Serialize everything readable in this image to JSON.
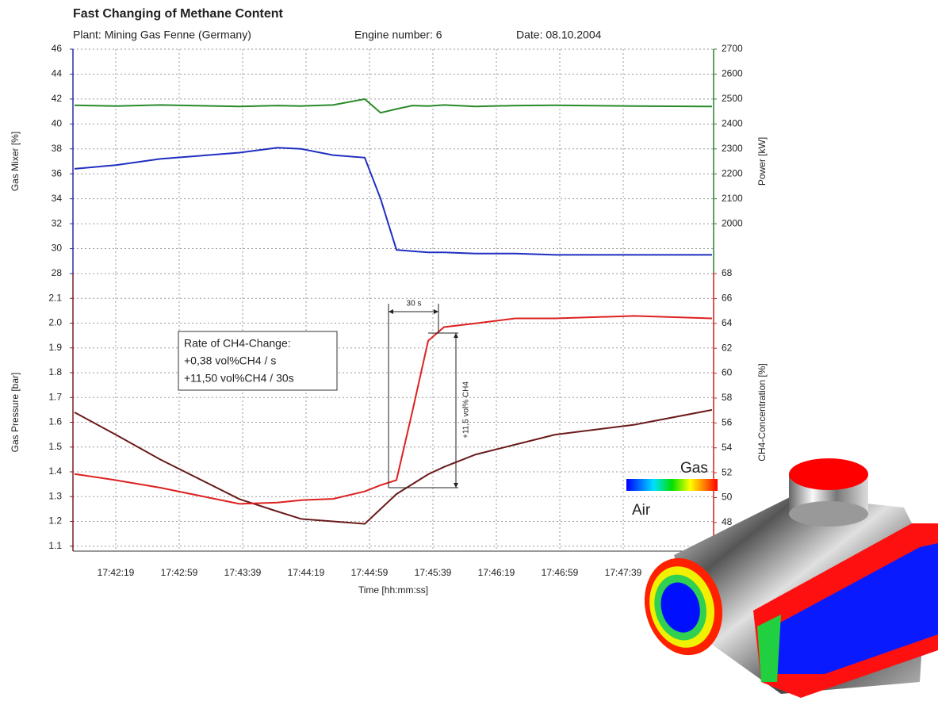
{
  "chart_data": [
    {
      "type": "line",
      "title": "Fast Changing of Methane Content",
      "subtitles": [
        "Plant: Mining Gas Fenne (Germany)",
        "Engine number: 6",
        "Date: 08.10.2004"
      ],
      "x": [
        "17:41:53",
        "17:42:19",
        "17:42:47",
        "17:43:37",
        "17:44:01",
        "17:44:16",
        "17:44:36",
        "17:44:56",
        "17:45:06",
        "17:45:16",
        "17:45:26",
        "17:45:36",
        "17:45:46",
        "17:46:06",
        "17:46:31",
        "17:46:56",
        "17:47:46",
        "17:48:35"
      ],
      "xlim": [
        "17:41:52",
        "17:48:36"
      ],
      "xticks": [
        "17:42:19",
        "17:42:59",
        "17:43:39",
        "17:44:19",
        "17:44:59",
        "17:45:39",
        "17:46:19",
        "17:46:59",
        "17:47:39"
      ],
      "ylabel": "Gas Mixer [%]",
      "ylim": [
        28,
        46
      ],
      "yticks": [
        28,
        30,
        32,
        34,
        36,
        38,
        40,
        42,
        44,
        46
      ],
      "y2label": "Power [kW]",
      "y2lim": [
        1800,
        2700
      ],
      "y2ticks": [
        2000,
        2100,
        2200,
        2300,
        2400,
        2500,
        2600,
        2700
      ],
      "grid": true,
      "axis_colors": {
        "y": "#2b2ba8",
        "y2": "#2e7d2e"
      },
      "series": [
        {
          "color": "#1f2fbf",
          "values": [
            36.4,
            36.7,
            37.2,
            37.7,
            38.1,
            38.0,
            37.5,
            37.3,
            34.0,
            29.9,
            29.8,
            29.7,
            29.7,
            29.6,
            29.6,
            29.5,
            29.5,
            29.5
          ]
        },
        {
          "color": "#2a8a2a",
          "axis": "y2",
          "values": [
            2475,
            2472,
            2476,
            2470,
            2474,
            2472,
            2476,
            2500,
            2445,
            2460,
            2474,
            2472,
            2476,
            2470,
            2474,
            2475,
            2472,
            2470
          ]
        }
      ]
    },
    {
      "type": "line",
      "x": [
        "17:41:53",
        "17:42:19",
        "17:42:47",
        "17:43:37",
        "17:44:01",
        "17:44:16",
        "17:44:36",
        "17:44:56",
        "17:45:06",
        "17:45:16",
        "17:45:26",
        "17:45:36",
        "17:45:46",
        "17:46:06",
        "17:46:31",
        "17:46:56",
        "17:47:46",
        "17:48:35"
      ],
      "xlim": [
        "17:41:52",
        "17:48:36"
      ],
      "xticks": [
        "17:42:19",
        "17:42:59",
        "17:43:39",
        "17:44:19",
        "17:44:59",
        "17:45:39",
        "17:46:19",
        "17:46:59",
        "17:47:39"
      ],
      "xlabel": "Time [hh:mm:ss]",
      "ylabel": "Gas Pressure [bar]",
      "ylim": [
        1.08,
        2.2
      ],
      "yticks": [
        1.1,
        1.2,
        1.3,
        1.4,
        1.5,
        1.6,
        1.7,
        1.8,
        1.9,
        {
          "value": 2,
          "label": "2.0"
        },
        2.1
      ],
      "y2label": "CH4-Concentration [%]",
      "y2lim": [
        45.7,
        68
      ],
      "y2ticks": [
        48,
        50,
        52,
        54,
        56,
        58,
        60,
        62,
        64,
        66,
        68
      ],
      "grid": true,
      "axis_colors": {
        "y": "#7a1f1f",
        "y2": "#cc2222"
      },
      "series": [
        {
          "color": "#6b1a1a",
          "values": [
            1.64,
            1.55,
            1.45,
            1.29,
            1.24,
            1.21,
            1.2,
            1.19,
            1.25,
            1.31,
            1.35,
            1.39,
            1.42,
            1.47,
            1.51,
            1.55,
            1.59,
            1.65
          ]
        },
        {
          "color": "#dd2020",
          "axis": "y2",
          "values": [
            51.9,
            51.4,
            50.8,
            49.5,
            49.6,
            49.8,
            49.9,
            50.5,
            51.0,
            51.4,
            56.9,
            62.6,
            63.7,
            64.0,
            64.4,
            64.4,
            64.6,
            64.4
          ]
        }
      ],
      "annotations": {
        "box": [
          "Rate of CH4-Change:",
          "+0,38 vol%CH4 / s",
          "+11,50 vol%CH4 / 30s"
        ],
        "interval": "30 s",
        "rise": "+11,5 vol% CH4"
      }
    }
  ],
  "render": {
    "gas_label": "Gas",
    "air_label": "Air"
  }
}
